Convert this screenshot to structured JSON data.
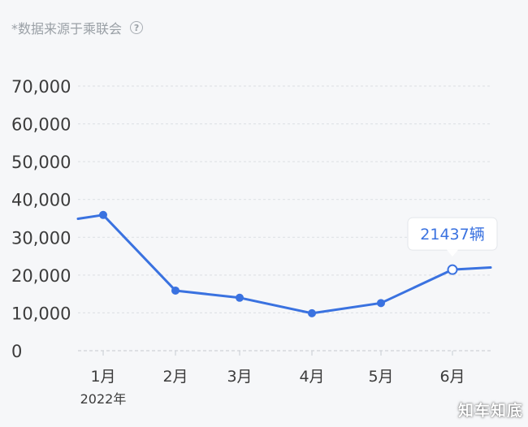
{
  "source_note": "*数据来源于乘联会",
  "help_icon": "question-circle-icon",
  "watermark": "知车知底",
  "tooltip": {
    "text": "21437辆",
    "point_index": 5
  },
  "colors": {
    "line": "#3a72e0",
    "tooltip_text": "#3a72e0",
    "axis_label": "#3c3c3c",
    "grid": "#dcdfe3",
    "background": "#f6f7f9"
  },
  "chart_data": {
    "type": "line",
    "title": "",
    "xlabel": "",
    "ylabel": "",
    "categories": [
      "1月",
      "2月",
      "3月",
      "4月",
      "5月",
      "6月"
    ],
    "x_sublabel": "2022年",
    "values": [
      35900,
      15900,
      14000,
      9900,
      12600,
      21437
    ],
    "left_edge_value": 34900,
    "right_edge_value": 22000,
    "ylim": [
      0,
      70000
    ],
    "yticks": [
      0,
      10000,
      20000,
      30000,
      40000,
      50000,
      60000,
      70000
    ],
    "ytick_labels": [
      "0",
      "10,000",
      "20,000",
      "30,000",
      "40,000",
      "50,000",
      "60,000",
      "70,000"
    ],
    "grid": true,
    "legend": "none"
  }
}
